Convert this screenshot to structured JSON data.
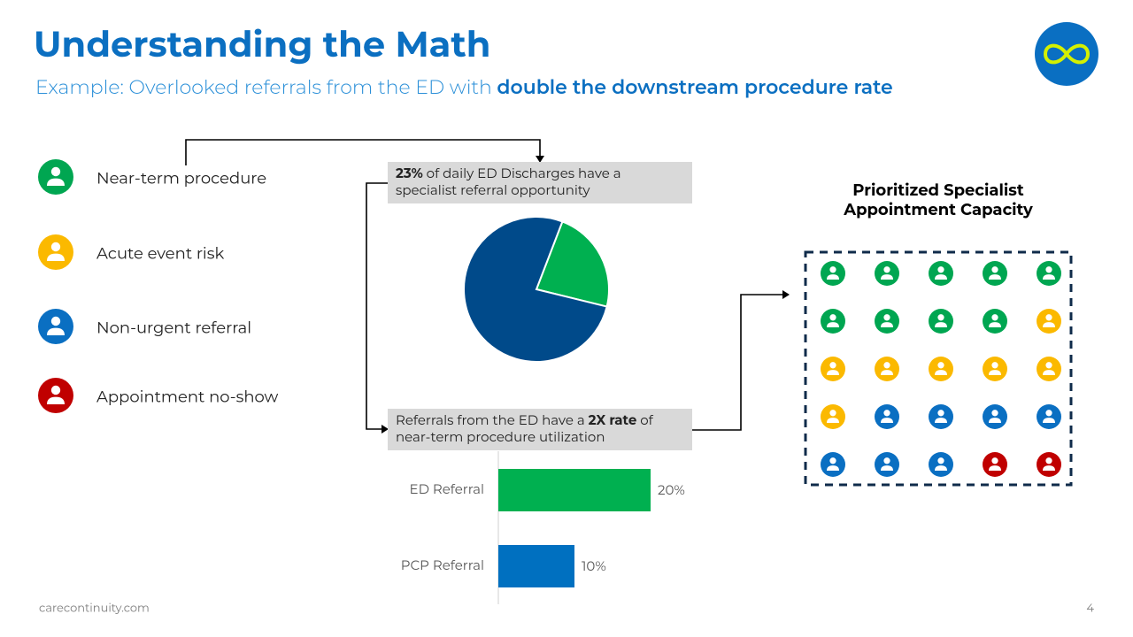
{
  "header": {
    "title": "Understanding the Math",
    "subtitle": [
      {
        "text": "Example: Overlooked referrals from the ED with ",
        "bold": false
      },
      {
        "text": "double the downstream procedure rate",
        "bold": true
      }
    ]
  },
  "legend": [
    {
      "label": "Near-term procedure",
      "color": "#00a651",
      "count": 9
    },
    {
      "label": "Acute event risk",
      "color": "#fbb900",
      "count": 7
    },
    {
      "label": "Non-urgent referral",
      "color": "#0a6fc2",
      "count": 7
    },
    {
      "label": "Appointment no-show",
      "color": "#c00000",
      "count": 2
    }
  ],
  "callouts": [
    {
      "lines": [
        [
          {
            "text": "23%",
            "bold": true
          },
          {
            "text": " of daily ED Discharges have a",
            "bold": false
          }
        ],
        [
          {
            "text": "specialist referral opportunity",
            "bold": false
          }
        ]
      ]
    },
    {
      "lines": [
        [
          {
            "text": "Referrals from the ED have a ",
            "bold": false
          },
          {
            "text": "2X rate",
            "bold": true
          },
          {
            "text": " of",
            "bold": false
          }
        ],
        [
          {
            "text": "near-term procedure utilization",
            "bold": false
          }
        ]
      ]
    }
  ],
  "capacity": {
    "title_lines": [
      "Prioritized Specialist",
      "Appointment Capacity"
    ]
  },
  "chart_data": [
    {
      "type": "pie",
      "values": [
        23,
        77
      ],
      "colors": [
        "#00b050",
        "#004a8a"
      ]
    },
    {
      "type": "bar",
      "categories": [
        "ED Referral",
        "PCP Referral"
      ],
      "values": [
        20,
        10
      ],
      "value_labels": [
        "20%",
        "10%"
      ],
      "colors": [
        "#00b050",
        "#0070c0"
      ],
      "xlim": [
        0,
        25
      ]
    }
  ],
  "footer": {
    "site": "carecontinuity.com",
    "page": "4"
  }
}
